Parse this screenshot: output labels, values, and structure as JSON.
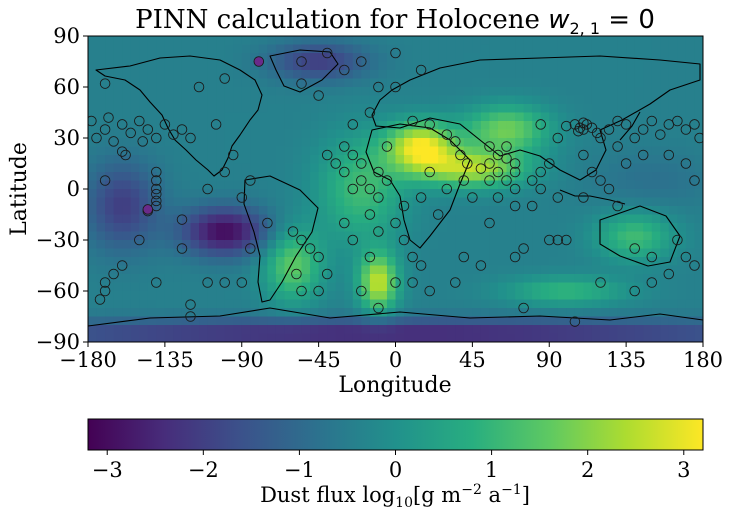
{
  "chart_data": {
    "type": "heatmap",
    "title": "PINN calculation for Holocene ",
    "title_math": "w",
    "title_sub": "2, 1",
    "title_tail": " = 0",
    "xlabel": "Longitude",
    "ylabel": "Latitude",
    "xlim": [
      -180,
      180
    ],
    "ylim": [
      -90,
      90
    ],
    "xticks": [
      -180,
      -135,
      -90,
      -45,
      0,
      45,
      90,
      135,
      180
    ],
    "yticks": [
      -90,
      -60,
      -30,
      0,
      30,
      60,
      90
    ],
    "xtick_labels": [
      "−180",
      "−135",
      "−90",
      "−45",
      "0",
      "45",
      "90",
      "135",
      "180"
    ],
    "ytick_labels": [
      "−90",
      "−60",
      "−30",
      "0",
      "30",
      "60",
      "90"
    ],
    "colormap": "viridis",
    "colorbar": {
      "label_main": "Dust flux log",
      "label_sub": "10",
      "label_units": "[g m",
      "label_exp1": "−2",
      "label_mid": " a",
      "label_exp2": "−1",
      "label_end": "]",
      "vmin": -3.2,
      "vmax": 3.2,
      "ticks": [
        -3,
        -2,
        -1,
        0,
        1,
        2,
        3
      ],
      "tick_labels": [
        "−3",
        "−2",
        "−1",
        "0",
        "1",
        "2",
        "3"
      ],
      "placement": "bottom"
    },
    "grid": false,
    "field_hotspots": [
      {
        "lon": 15,
        "lat": 25,
        "value": 3.0,
        "slon": 14,
        "slat": 10
      },
      {
        "lon": 45,
        "lat": 12,
        "value": 2.4,
        "slon": 22,
        "slat": 8
      },
      {
        "lon": 65,
        "lat": 35,
        "value": 1.8,
        "slon": 18,
        "slat": 10
      },
      {
        "lon": -10,
        "lat": -55,
        "value": 2.6,
        "slon": 8,
        "slat": 12
      },
      {
        "lon": -60,
        "lat": -45,
        "value": 1.6,
        "slon": 12,
        "slat": 15
      },
      {
        "lon": -20,
        "lat": 0,
        "value": 1.2,
        "slon": 18,
        "slat": 22
      },
      {
        "lon": 140,
        "lat": -28,
        "value": 1.2,
        "slon": 16,
        "slat": 10
      },
      {
        "lon": 100,
        "lat": -60,
        "value": 1.0,
        "slon": 25,
        "slat": 6
      },
      {
        "lon": -100,
        "lat": -25,
        "value": -3.0,
        "slon": 18,
        "slat": 10
      },
      {
        "lon": -160,
        "lat": -10,
        "value": -2.0,
        "slon": 15,
        "slat": 18
      },
      {
        "lon": -45,
        "lat": 75,
        "value": -2.0,
        "slon": 20,
        "slat": 8
      },
      {
        "lon": 0,
        "lat": -85,
        "value": -2.5,
        "slon": 180,
        "slat": 6
      },
      {
        "lon": 150,
        "lat": 5,
        "value": -0.8,
        "slon": 25,
        "slat": 12
      }
    ],
    "stations": [
      {
        "lon": -178,
        "lat": 40
      },
      {
        "lon": -175,
        "lat": 30
      },
      {
        "lon": -170,
        "lat": 35
      },
      {
        "lon": -168,
        "lat": 42
      },
      {
        "lon": -165,
        "lat": 28
      },
      {
        "lon": -160,
        "lat": 38
      },
      {
        "lon": -158,
        "lat": 20
      },
      {
        "lon": -155,
        "lat": 33
      },
      {
        "lon": -150,
        "lat": 40
      },
      {
        "lon": -148,
        "lat": 28
      },
      {
        "lon": -145,
        "lat": 35
      },
      {
        "lon": -140,
        "lat": 30
      },
      {
        "lon": -135,
        "lat": 38
      },
      {
        "lon": -130,
        "lat": 32
      },
      {
        "lon": -125,
        "lat": 35
      },
      {
        "lon": -120,
        "lat": 30
      },
      {
        "lon": -105,
        "lat": 38
      },
      {
        "lon": -160,
        "lat": 22
      },
      {
        "lon": -170,
        "lat": 5
      },
      {
        "lon": -140,
        "lat": 10
      },
      {
        "lon": -140,
        "lat": 5
      },
      {
        "lon": -140,
        "lat": 0
      },
      {
        "lon": -140,
        "lat": -3
      },
      {
        "lon": -140,
        "lat": -7
      },
      {
        "lon": -140,
        "lat": -10
      },
      {
        "lon": -145,
        "lat": -13
      },
      {
        "lon": -125,
        "lat": -18
      },
      {
        "lon": -110,
        "lat": 0
      },
      {
        "lon": -95,
        "lat": 20
      },
      {
        "lon": -100,
        "lat": 10
      },
      {
        "lon": -85,
        "lat": 5
      },
      {
        "lon": -90,
        "lat": -5
      },
      {
        "lon": -75,
        "lat": -20
      },
      {
        "lon": -85,
        "lat": -35
      },
      {
        "lon": -125,
        "lat": -35
      },
      {
        "lon": -150,
        "lat": -30
      },
      {
        "lon": -165,
        "lat": -50
      },
      {
        "lon": -170,
        "lat": -55
      },
      {
        "lon": -170,
        "lat": -60
      },
      {
        "lon": -173,
        "lat": -65
      },
      {
        "lon": -160,
        "lat": -45
      },
      {
        "lon": -140,
        "lat": -55
      },
      {
        "lon": -110,
        "lat": -55
      },
      {
        "lon": -100,
        "lat": -55
      },
      {
        "lon": -90,
        "lat": -55
      },
      {
        "lon": -120,
        "lat": -75
      },
      {
        "lon": -60,
        "lat": -25
      },
      {
        "lon": -55,
        "lat": -30
      },
      {
        "lon": -50,
        "lat": -35
      },
      {
        "lon": -45,
        "lat": -40
      },
      {
        "lon": -58,
        "lat": -50
      },
      {
        "lon": -55,
        "lat": -60
      },
      {
        "lon": -40,
        "lat": -50
      },
      {
        "lon": -45,
        "lat": 55
      },
      {
        "lon": -55,
        "lat": 62
      },
      {
        "lon": -30,
        "lat": 70
      },
      {
        "lon": -20,
        "lat": 75
      },
      {
        "lon": -10,
        "lat": 60
      },
      {
        "lon": -15,
        "lat": 45
      },
      {
        "lon": -25,
        "lat": 38
      },
      {
        "lon": -40,
        "lat": 20
      },
      {
        "lon": -30,
        "lat": 25
      },
      {
        "lon": -35,
        "lat": 15
      },
      {
        "lon": -30,
        "lat": 10
      },
      {
        "lon": -25,
        "lat": 20
      },
      {
        "lon": -20,
        "lat": 15
      },
      {
        "lon": -20,
        "lat": 5
      },
      {
        "lon": -25,
        "lat": 0
      },
      {
        "lon": -15,
        "lat": 0
      },
      {
        "lon": -10,
        "lat": 10
      },
      {
        "lon": -5,
        "lat": 5
      },
      {
        "lon": -10,
        "lat": -5
      },
      {
        "lon": -15,
        "lat": -15
      },
      {
        "lon": -30,
        "lat": -20
      },
      {
        "lon": -25,
        "lat": -30
      },
      {
        "lon": -10,
        "lat": -25
      },
      {
        "lon": 0,
        "lat": -20
      },
      {
        "lon": 5,
        "lat": -10
      },
      {
        "lon": 5,
        "lat": -30
      },
      {
        "lon": 10,
        "lat": -40
      },
      {
        "lon": -15,
        "lat": -40
      },
      {
        "lon": -20,
        "lat": -60
      },
      {
        "lon": 0,
        "lat": -55
      },
      {
        "lon": 10,
        "lat": -55
      },
      {
        "lon": 15,
        "lat": -45
      },
      {
        "lon": 20,
        "lat": -60
      },
      {
        "lon": 10,
        "lat": 40
      },
      {
        "lon": 20,
        "lat": 38
      },
      {
        "lon": 30,
        "lat": 32
      },
      {
        "lon": 35,
        "lat": 28
      },
      {
        "lon": 38,
        "lat": 20
      },
      {
        "lon": 42,
        "lat": 15
      },
      {
        "lon": 50,
        "lat": 12
      },
      {
        "lon": 55,
        "lat": 15
      },
      {
        "lon": 60,
        "lat": 20
      },
      {
        "lon": 65,
        "lat": 18
      },
      {
        "lon": 60,
        "lat": 10
      },
      {
        "lon": 55,
        "lat": 5
      },
      {
        "lon": 65,
        "lat": 5
      },
      {
        "lon": 70,
        "lat": 10
      },
      {
        "lon": 60,
        "lat": -5
      },
      {
        "lon": 55,
        "lat": -20
      },
      {
        "lon": 70,
        "lat": 0
      },
      {
        "lon": 80,
        "lat": 5
      },
      {
        "lon": 85,
        "lat": 10
      },
      {
        "lon": 90,
        "lat": 15
      },
      {
        "lon": 85,
        "lat": 0
      },
      {
        "lon": 95,
        "lat": -5
      },
      {
        "lon": 70,
        "lat": -10
      },
      {
        "lon": 75,
        "lat": -35
      },
      {
        "lon": 70,
        "lat": -40
      },
      {
        "lon": 40,
        "lat": -40
      },
      {
        "lon": 50,
        "lat": -45
      },
      {
        "lon": 120,
        "lat": -55
      },
      {
        "lon": 140,
        "lat": -60
      },
      {
        "lon": 150,
        "lat": -55
      },
      {
        "lon": 160,
        "lat": -50
      },
      {
        "lon": 90,
        "lat": -30
      },
      {
        "lon": 95,
        "lat": -30
      },
      {
        "lon": 100,
        "lat": -30
      },
      {
        "lon": 140,
        "lat": -35
      },
      {
        "lon": 150,
        "lat": -40
      },
      {
        "lon": 165,
        "lat": -30
      },
      {
        "lon": 170,
        "lat": -40
      },
      {
        "lon": 175,
        "lat": -45
      },
      {
        "lon": 100,
        "lat": 37
      },
      {
        "lon": 105,
        "lat": 38
      },
      {
        "lon": 108,
        "lat": 36
      },
      {
        "lon": 110,
        "lat": 35
      },
      {
        "lon": 112,
        "lat": 38
      },
      {
        "lon": 115,
        "lat": 36
      },
      {
        "lon": 110,
        "lat": 39
      },
      {
        "lon": 107,
        "lat": 34
      },
      {
        "lon": 118,
        "lat": 33
      },
      {
        "lon": 120,
        "lat": 30
      },
      {
        "lon": 125,
        "lat": 35
      },
      {
        "lon": 130,
        "lat": 40
      },
      {
        "lon": 135,
        "lat": 38
      },
      {
        "lon": 140,
        "lat": 30
      },
      {
        "lon": 145,
        "lat": 35
      },
      {
        "lon": 150,
        "lat": 40
      },
      {
        "lon": 155,
        "lat": 32
      },
      {
        "lon": 160,
        "lat": 38
      },
      {
        "lon": 165,
        "lat": 40
      },
      {
        "lon": 170,
        "lat": 35
      },
      {
        "lon": 175,
        "lat": 38
      },
      {
        "lon": 178,
        "lat": 30
      },
      {
        "lon": 85,
        "lat": 38
      },
      {
        "lon": 95,
        "lat": 30
      },
      {
        "lon": 110,
        "lat": 20
      },
      {
        "lon": 115,
        "lat": 10
      },
      {
        "lon": 120,
        "lat": 5
      },
      {
        "lon": 125,
        "lat": 0
      },
      {
        "lon": 130,
        "lat": 25
      },
      {
        "lon": 135,
        "lat": 15
      },
      {
        "lon": 145,
        "lat": 20
      },
      {
        "lon": 160,
        "lat": 20
      },
      {
        "lon": 170,
        "lat": 15
      },
      {
        "lon": 175,
        "lat": 5
      },
      {
        "lon": 80,
        "lat": -10
      },
      {
        "lon": 110,
        "lat": -5
      },
      {
        "lon": 130,
        "lat": -10
      },
      {
        "lon": -115,
        "lat": 60
      },
      {
        "lon": -100,
        "lat": 65
      },
      {
        "lon": -55,
        "lat": 75
      },
      {
        "lon": -40,
        "lat": 80
      },
      {
        "lon": 0,
        "lat": 80
      },
      {
        "lon": 105,
        "lat": -78
      },
      {
        "lon": -120,
        "lat": -68
      },
      {
        "lon": 75,
        "lat": -70
      },
      {
        "lon": -170,
        "lat": 62
      },
      {
        "lon": 0,
        "lat": 60
      },
      {
        "lon": 15,
        "lat": 70
      },
      {
        "lon": -45,
        "lat": -60
      },
      {
        "lon": -10,
        "lat": -70
      },
      {
        "lon": 35,
        "lat": -55
      },
      {
        "lon": -5,
        "lat": 25
      },
      {
        "lon": 20,
        "lat": 10
      },
      {
        "lon": 30,
        "lat": 0
      },
      {
        "lon": 40,
        "lat": 5
      },
      {
        "lon": 15,
        "lat": -5
      },
      {
        "lon": 25,
        "lat": -15
      },
      {
        "lon": 45,
        "lat": -5
      },
      {
        "lon": 55,
        "lat": 25
      },
      {
        "lon": 65,
        "lat": 25
      },
      {
        "lon": 70,
        "lat": 15
      }
    ],
    "highlighted_stations": [
      {
        "lon": -145,
        "lat": -12,
        "color": "#6a2a8a"
      },
      {
        "lon": -80,
        "lat": 75,
        "color": "#6a2a8a"
      }
    ]
  }
}
